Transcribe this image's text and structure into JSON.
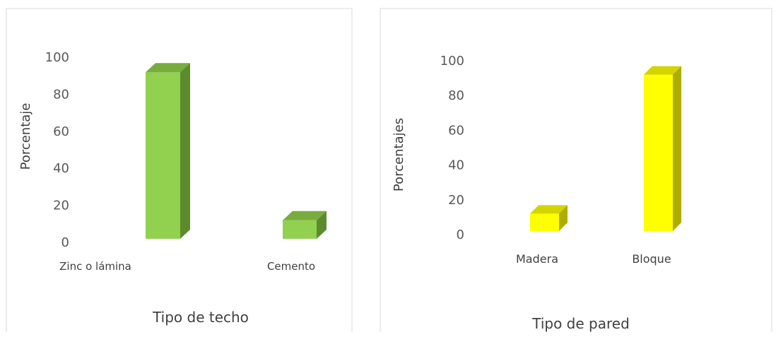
{
  "chart_data": [
    {
      "type": "bar",
      "categories": [
        "Zinc o lámina",
        "Cemento"
      ],
      "values": [
        90,
        10
      ],
      "xlabel": "Tipo de techo",
      "ylabel": "Porcentaje",
      "ylim": [
        0,
        100
      ],
      "yticks": [
        0,
        20,
        40,
        60,
        80,
        100
      ],
      "grid": false,
      "legend": "none",
      "bar_style": "3d",
      "colors": {
        "front": "#92d050",
        "top": "#78ad3d",
        "side": "#5e8a2e"
      }
    },
    {
      "type": "bar",
      "categories": [
        "Madera",
        "Bloque"
      ],
      "values": [
        10,
        90
      ],
      "xlabel": "Tipo de pared",
      "ylabel": "Porcentajes",
      "ylim": [
        0,
        100
      ],
      "yticks": [
        0,
        20,
        40,
        60,
        80,
        100
      ],
      "grid": false,
      "legend": "none",
      "bar_style": "3d",
      "colors": {
        "front": "#ffff00",
        "top": "#d4d400",
        "side": "#adad00"
      }
    }
  ]
}
